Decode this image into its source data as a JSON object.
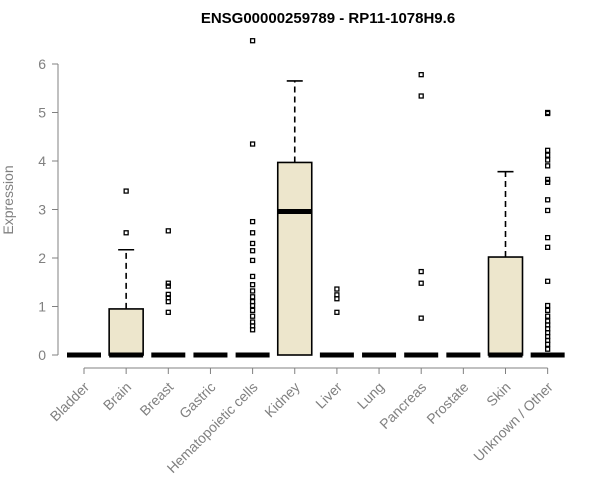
{
  "chart_data": {
    "type": "boxplot",
    "title": "ENSG00000259789 - RP11-1078H9.6",
    "xlabel": "",
    "ylabel": "Expression",
    "ylim": [
      0,
      6.5
    ],
    "yticks": [
      "0",
      "1",
      "2",
      "3",
      "4",
      "5",
      "6"
    ],
    "grid": false,
    "box_color": "#ede6cc",
    "categories": [
      "Bladder",
      "Brain",
      "Breast",
      "Gastric",
      "Hematopoietic cells",
      "Kidney",
      "Liver",
      "Lung",
      "Pancreas",
      "Prostate",
      "Skin",
      "Unknown / Other"
    ],
    "boxes": [
      {
        "q1": 0,
        "median": 0,
        "q3": 0,
        "whisker_low": 0,
        "whisker_high": 0,
        "outliers": []
      },
      {
        "q1": 0,
        "median": 0,
        "q3": 0.95,
        "whisker_low": 0,
        "whisker_high": 2.17,
        "outliers": [
          2.52,
          3.38
        ]
      },
      {
        "q1": 0,
        "median": 0,
        "q3": 0,
        "whisker_low": 0,
        "whisker_high": 0,
        "outliers": [
          0.88,
          1.1,
          1.18,
          1.25,
          1.42,
          1.48,
          2.56
        ]
      },
      {
        "q1": 0,
        "median": 0,
        "q3": 0,
        "whisker_low": 0,
        "whisker_high": 0,
        "outliers": []
      },
      {
        "q1": 0,
        "median": 0,
        "q3": 0,
        "whisker_low": 0,
        "whisker_high": 0,
        "outliers": [
          0.52,
          0.6,
          0.68,
          0.8,
          0.92,
          1.02,
          1.1,
          1.2,
          1.32,
          1.45,
          1.62,
          1.95,
          2.15,
          2.3,
          2.52,
          2.75,
          4.35,
          6.48
        ]
      },
      {
        "q1": 0,
        "median": 2.96,
        "q3": 3.97,
        "whisker_low": 0,
        "whisker_high": 5.65,
        "outliers": []
      },
      {
        "q1": 0,
        "median": 0,
        "q3": 0,
        "whisker_low": 0,
        "whisker_high": 0,
        "outliers": [
          0.88,
          1.16,
          1.24,
          1.36
        ]
      },
      {
        "q1": 0,
        "median": 0,
        "q3": 0,
        "whisker_low": 0,
        "whisker_high": 0,
        "outliers": []
      },
      {
        "q1": 0,
        "median": 0,
        "q3": 0,
        "whisker_low": 0,
        "whisker_high": 0,
        "outliers": [
          0.76,
          1.48,
          1.72,
          5.34,
          5.78
        ]
      },
      {
        "q1": 0,
        "median": 0,
        "q3": 0,
        "whisker_low": 0,
        "whisker_high": 0,
        "outliers": []
      },
      {
        "q1": 0,
        "median": 0,
        "q3": 2.02,
        "whisker_low": 0,
        "whisker_high": 3.78,
        "outliers": []
      },
      {
        "q1": 0,
        "median": 0,
        "q3": 0,
        "whisker_low": 0,
        "whisker_high": 0,
        "outliers": [
          0.12,
          0.22,
          0.3,
          0.38,
          0.46,
          0.54,
          0.62,
          0.7,
          0.8,
          0.92,
          1.02,
          1.52,
          2.22,
          2.42,
          2.98,
          3.2,
          3.56,
          3.62,
          3.9,
          4.02,
          4.12,
          4.22,
          4.98,
          5.0
        ]
      }
    ]
  }
}
